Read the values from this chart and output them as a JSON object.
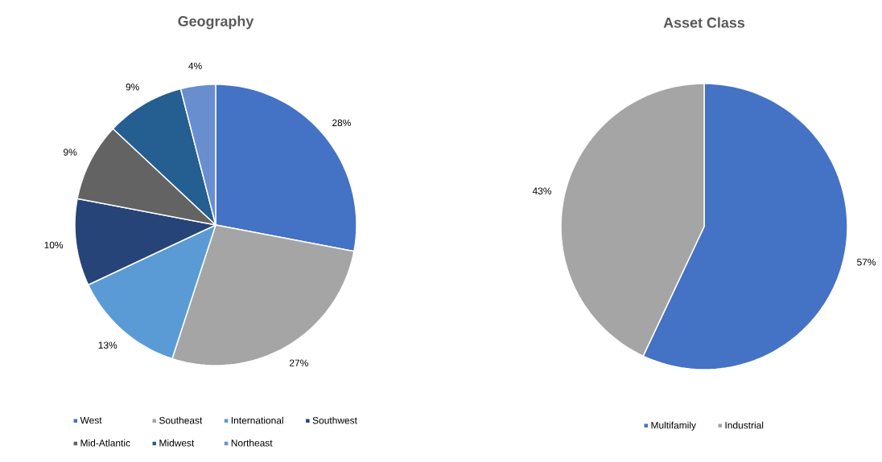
{
  "chart_data": [
    {
      "type": "pie",
      "title": "Geography",
      "categories": [
        "West",
        "Southeast",
        "International",
        "Southwest",
        "Mid-Atlantic",
        "Midwest",
        "Northeast"
      ],
      "values": [
        28,
        27,
        13,
        10,
        9,
        9,
        4
      ],
      "value_labels": [
        "28%",
        "27%",
        "13%",
        "10%",
        "9%",
        "9%",
        "4%"
      ],
      "colors": [
        "#4472c4",
        "#a5a5a5",
        "#5b9bd5",
        "#264478",
        "#636363",
        "#255e91",
        "#698ed0"
      ],
      "legend": "bottom"
    },
    {
      "type": "pie",
      "title": "Asset Class",
      "categories": [
        "Multifamily",
        "Industrial"
      ],
      "values": [
        57,
        43
      ],
      "value_labels": [
        "57%",
        "43%"
      ],
      "colors": [
        "#4472c4",
        "#a5a5a5"
      ],
      "legend": "bottom"
    }
  ]
}
